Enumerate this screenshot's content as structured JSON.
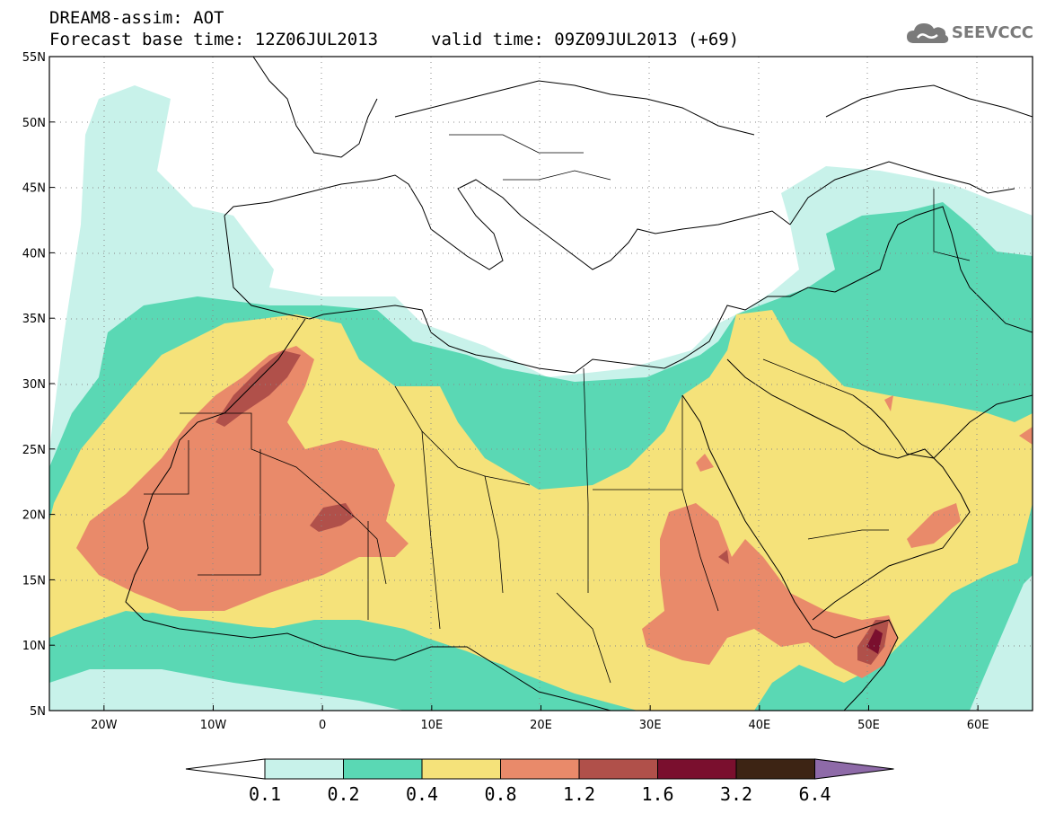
{
  "header": {
    "title_line1": "DREAM8-assim: AOT",
    "title_line2": "Forecast base time: 12Z06JUL2013",
    "valid_time": "valid time: 09Z09JUL2013 (+69)"
  },
  "logo": {
    "text": "SEEVCCC",
    "icon": "cloud-icon"
  },
  "map": {
    "lat_range": [
      5,
      55
    ],
    "lon_range": [
      -25,
      65
    ],
    "lat_labels": [
      "55N",
      "50N",
      "45N",
      "40N",
      "35N",
      "30N",
      "25N",
      "20N",
      "15N",
      "10N",
      "5N"
    ],
    "lon_labels": [
      "20W",
      "10W",
      "0",
      "10E",
      "20E",
      "30E",
      "40E",
      "50E",
      "60E"
    ]
  },
  "colorbar": {
    "labels": [
      "0.1",
      "0.2",
      "0.4",
      "0.8",
      "1.2",
      "1.6",
      "3.2",
      "6.4"
    ],
    "colors": [
      "#ffffff",
      "#c8f2ea",
      "#5ad8b4",
      "#f5e27a",
      "#e98a6a",
      "#b0504a",
      "#7a0f2e",
      "#3d2414",
      "#8e6aa8"
    ]
  }
}
